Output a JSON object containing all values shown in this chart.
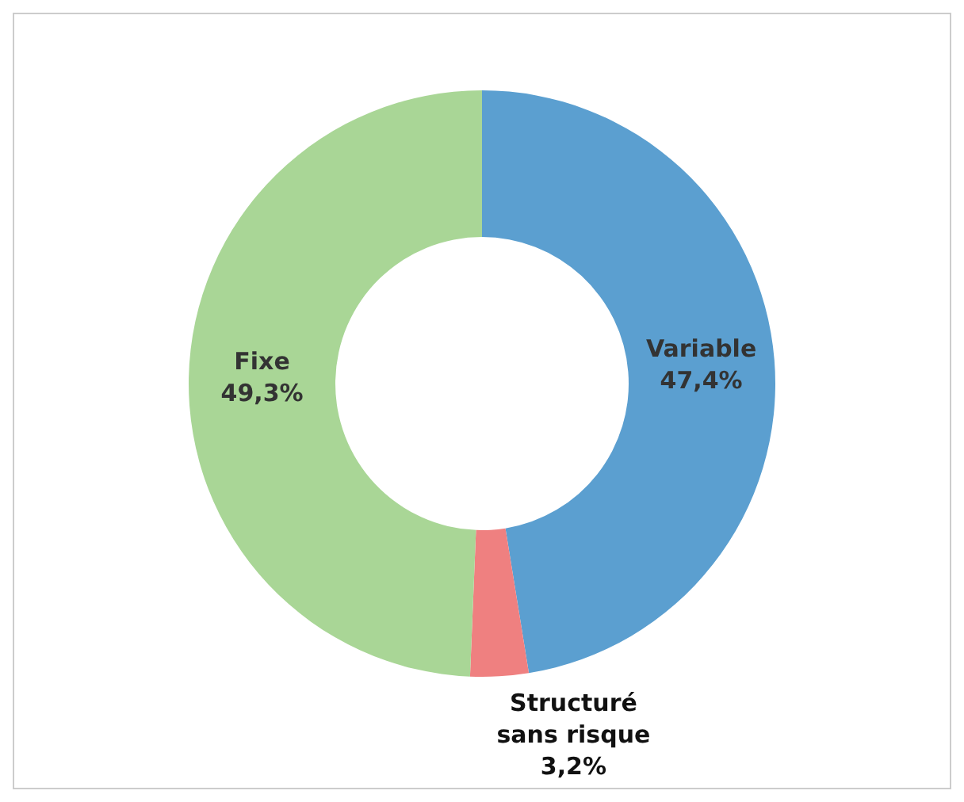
{
  "chart_data": {
    "type": "donut",
    "categories": [
      "Variable",
      "Structuré sans risque",
      "Fixe"
    ],
    "values": [
      47.4,
      3.2,
      49.3
    ],
    "colors": [
      "#5b9fd0",
      "#ef8080",
      "#a9d696"
    ],
    "value_labels": [
      "47,4%",
      "3,2%",
      "49,3%"
    ],
    "legend": false
  }
}
